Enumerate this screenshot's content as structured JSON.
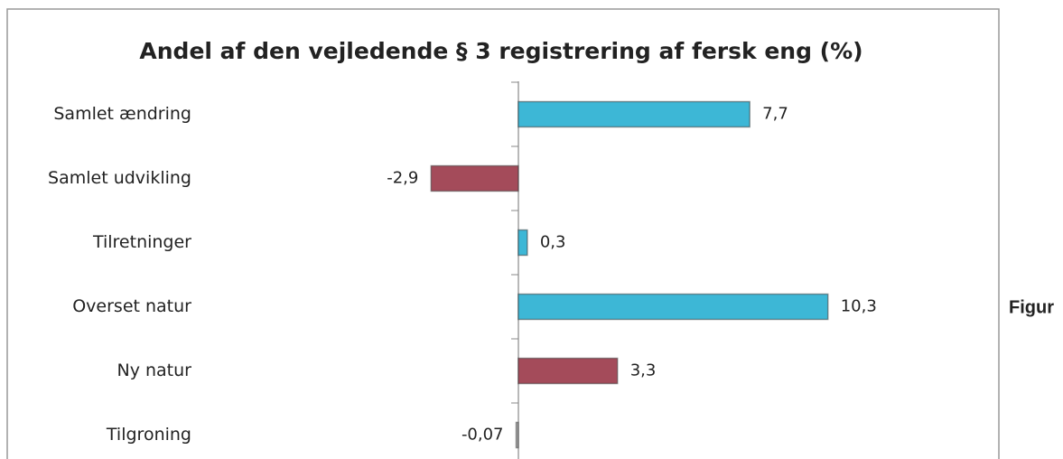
{
  "chart_data": {
    "type": "barh",
    "title": "Andel af den vejledende § 3 registrering af fersk eng (%)",
    "categories": [
      "Samlet ændring",
      "Samlet udvikling",
      "Tilretninger",
      "Overset natur",
      "Ny natur",
      "Tilgroning"
    ],
    "values": [
      7.7,
      -2.9,
      0.3,
      10.3,
      3.3,
      -0.07
    ],
    "value_labels": [
      "7,7",
      "-2,9",
      "0,3",
      "10,3",
      "3,3",
      "-0,07"
    ],
    "colors": [
      "#3db7d6",
      "#a44b5a",
      "#3db7d6",
      "#3db7d6",
      "#a44b5a",
      "#b0b0b0"
    ],
    "xlim": [
      -3,
      11
    ]
  },
  "side_text": "Figur"
}
